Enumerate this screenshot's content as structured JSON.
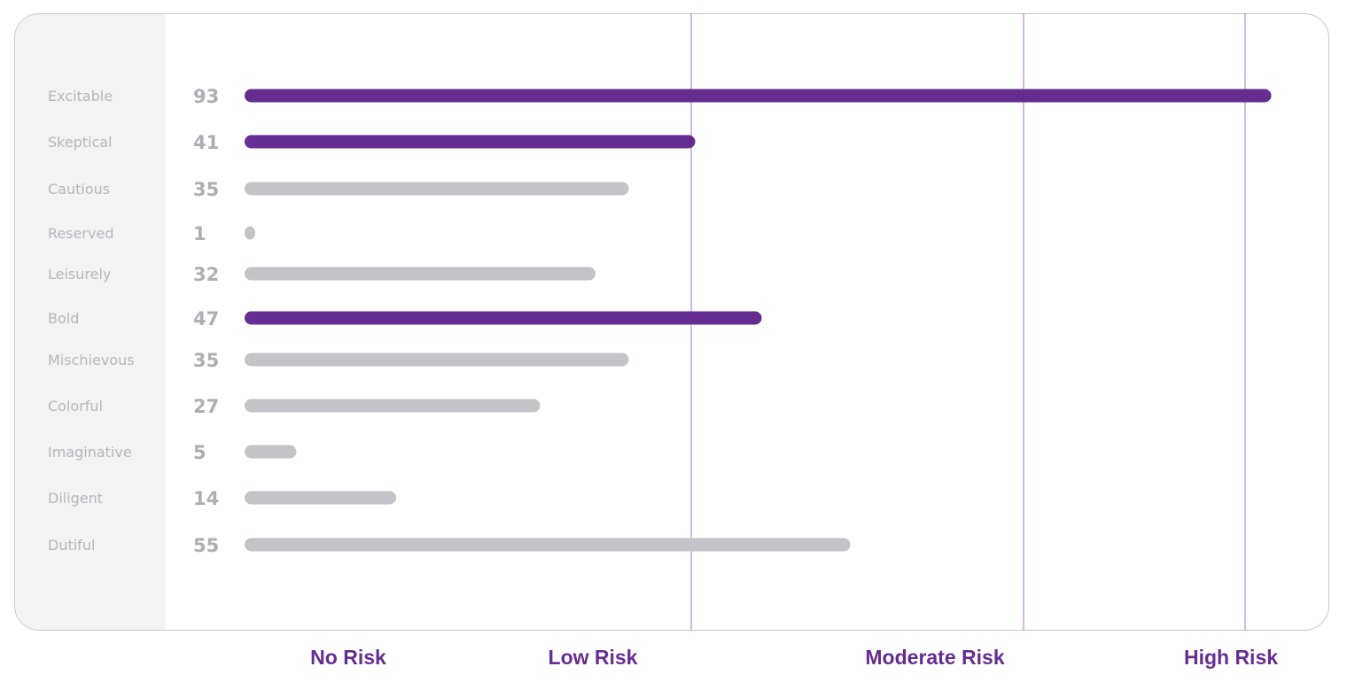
{
  "chart_data": {
    "type": "bar",
    "orientation": "horizontal",
    "categories": [
      "Excitable",
      "Skeptical",
      "Cautious",
      "Reserved",
      "Leisurely",
      "Bold",
      "Mischievous",
      "Colorful",
      "Imaginative",
      "Diligent",
      "Dutiful"
    ],
    "values": [
      93,
      41,
      35,
      1,
      32,
      47,
      35,
      27,
      5,
      14,
      55
    ],
    "highlighted": [
      true,
      true,
      false,
      false,
      false,
      true,
      false,
      false,
      false,
      false,
      false
    ],
    "xlim": [
      0,
      100
    ],
    "thresholds": [
      40,
      70,
      90
    ],
    "zone_labels": [
      "No Risk",
      "Low Risk",
      "Moderate Risk",
      "High Risk"
    ],
    "legend": "none",
    "grid": false
  },
  "colors": {
    "highlight_bar": "#662d91",
    "normal_bar": "#c3c3ca",
    "threshold_line": "#b48fd2",
    "zone_label": "#662d91",
    "label_panel": "#f3f3f4"
  }
}
